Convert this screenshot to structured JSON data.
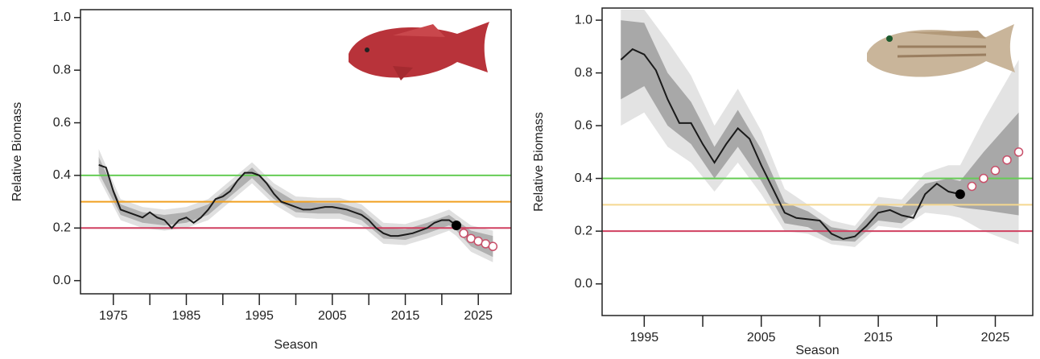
{
  "chart_data": [
    {
      "type": "line",
      "xlabel": "Season",
      "ylabel": "Relative Biomass",
      "xlim": [
        1970.5,
        2029.5
      ],
      "ylim": [
        -0.05,
        1.03
      ],
      "xticks": [
        1975,
        1985,
        1995,
        2005,
        2015,
        2025
      ],
      "x_minor_ticks": [
        1980,
        1990,
        2000,
        2010,
        2020
      ],
      "yticks": [
        {
          "value": 0,
          "label": "0.0"
        },
        {
          "value": 0.2,
          "label": "0.2"
        },
        {
          "value": 0.4,
          "label": "0.4"
        },
        {
          "value": 0.6,
          "label": "0.6"
        },
        {
          "value": 0.8,
          "label": "0.8"
        },
        {
          "value": 1,
          "label": "1.0"
        }
      ],
      "x": [
        1973,
        1974,
        1975,
        1976,
        1977,
        1978,
        1979,
        1980,
        1981,
        1982,
        1983,
        1984,
        1985,
        1986,
        1987,
        1988,
        1989,
        1990,
        1991,
        1992,
        1993,
        1994,
        1995,
        1996,
        1997,
        1998,
        1999,
        2000,
        2001,
        2002,
        2003,
        2004,
        2005,
        2006,
        2007,
        2008,
        2009,
        2010,
        2011,
        2012,
        2013,
        2014,
        2015,
        2016,
        2017,
        2018,
        2019,
        2020,
        2021,
        2022
      ],
      "values": [
        0.44,
        0.43,
        0.34,
        0.27,
        0.26,
        0.25,
        0.24,
        0.26,
        0.24,
        0.23,
        0.2,
        0.23,
        0.24,
        0.22,
        0.24,
        0.27,
        0.31,
        0.32,
        0.34,
        0.38,
        0.41,
        0.41,
        0.4,
        0.37,
        0.33,
        0.3,
        0.29,
        0.28,
        0.27,
        0.27,
        0.275,
        0.28,
        0.28,
        0.275,
        0.27,
        0.26,
        0.25,
        0.23,
        0.2,
        0.18,
        0.17,
        0.17,
        0.175,
        0.18,
        0.19,
        0.2,
        0.22,
        0.23,
        0.23,
        0.21
      ],
      "color": "#1a1a1a",
      "current": {
        "x": 2022,
        "value": 0.21,
        "color": "#000000"
      },
      "projection": {
        "x": [
          2023,
          2024,
          2025,
          2026,
          2027
        ],
        "values": [
          0.18,
          0.16,
          0.15,
          0.14,
          0.13
        ],
        "color": "#c8506a"
      },
      "bands": [
        {
          "color": "#e0e0e0",
          "x": [
            1973,
            1976,
            1979,
            1982,
            1985,
            1988,
            1991,
            1994,
            1997,
            2000,
            2003,
            2006,
            2009,
            2012,
            2015,
            2018,
            2021,
            2022,
            2024,
            2027
          ],
          "lower": [
            0.39,
            0.23,
            0.2,
            0.19,
            0.2,
            0.23,
            0.3,
            0.37,
            0.29,
            0.24,
            0.235,
            0.235,
            0.21,
            0.14,
            0.135,
            0.16,
            0.19,
            0.17,
            0.11,
            0.07
          ],
          "upper": [
            0.5,
            0.31,
            0.28,
            0.27,
            0.28,
            0.31,
            0.38,
            0.45,
            0.37,
            0.32,
            0.315,
            0.315,
            0.29,
            0.22,
            0.215,
            0.24,
            0.27,
            0.25,
            0.21,
            0.19
          ]
        },
        {
          "color": "#b0b0b0",
          "x": [
            1973,
            1976,
            1979,
            1982,
            1985,
            1988,
            1991,
            1994,
            1997,
            2000,
            2003,
            2006,
            2009,
            2012,
            2015,
            2018,
            2021,
            2022,
            2024,
            2027
          ],
          "lower": [
            0.41,
            0.25,
            0.22,
            0.21,
            0.22,
            0.25,
            0.32,
            0.39,
            0.31,
            0.26,
            0.255,
            0.255,
            0.23,
            0.16,
            0.155,
            0.18,
            0.21,
            0.19,
            0.13,
            0.09
          ],
          "upper": [
            0.47,
            0.29,
            0.26,
            0.25,
            0.26,
            0.29,
            0.36,
            0.43,
            0.35,
            0.3,
            0.295,
            0.295,
            0.27,
            0.2,
            0.195,
            0.22,
            0.25,
            0.23,
            0.19,
            0.17
          ]
        }
      ],
      "reference_lines": [
        {
          "value": 0.4,
          "color": "#66cc55"
        },
        {
          "value": 0.3,
          "color": "#f0a020"
        },
        {
          "value": 0.2,
          "color": "#d04060"
        }
      ]
    },
    {
      "type": "line",
      "xlabel": "Season",
      "ylabel": "Relative Biomass",
      "xlim": [
        1991.4,
        2028.2
      ],
      "ylim": [
        -0.12,
        1.046
      ],
      "xticks": [
        1995,
        2005,
        2015,
        2025
      ],
      "x_minor_ticks": [
        2000,
        2010,
        2020
      ],
      "yticks": [
        {
          "value": 0,
          "label": "0.0"
        },
        {
          "value": 0.2,
          "label": "0.2"
        },
        {
          "value": 0.4,
          "label": "0.4"
        },
        {
          "value": 0.6,
          "label": "0.6"
        },
        {
          "value": 0.8,
          "label": "0.8"
        },
        {
          "value": 1,
          "label": "1.0"
        }
      ],
      "x": [
        1993,
        1994,
        1995,
        1996,
        1997,
        1998,
        1999,
        2000,
        2001,
        2002,
        2003,
        2004,
        2005,
        2006,
        2007,
        2008,
        2009,
        2010,
        2011,
        2012,
        2013,
        2014,
        2015,
        2016,
        2017,
        2018,
        2019,
        2020,
        2021,
        2022
      ],
      "values": [
        0.85,
        0.89,
        0.87,
        0.81,
        0.7,
        0.61,
        0.61,
        0.53,
        0.46,
        0.53,
        0.59,
        0.55,
        0.45,
        0.36,
        0.27,
        0.25,
        0.245,
        0.24,
        0.19,
        0.17,
        0.18,
        0.22,
        0.27,
        0.28,
        0.26,
        0.25,
        0.34,
        0.38,
        0.35,
        0.34
      ],
      "color": "#1a1a1a",
      "current": {
        "x": 2022,
        "value": 0.34,
        "color": "#000000"
      },
      "projection": {
        "x": [
          2023,
          2024,
          2025,
          2026,
          2027
        ],
        "values": [
          0.37,
          0.4,
          0.43,
          0.47,
          0.5
        ],
        "color": "#c8506a"
      },
      "bands": [
        {
          "color": "#e3e3e3",
          "x": [
            1993,
            1995,
            1997,
            1999,
            2001,
            2003,
            2005,
            2007,
            2009,
            2011,
            2013,
            2015,
            2017,
            2019,
            2021,
            2022,
            2024,
            2027
          ],
          "lower": [
            0.6,
            0.65,
            0.52,
            0.46,
            0.35,
            0.46,
            0.34,
            0.2,
            0.19,
            0.15,
            0.14,
            0.22,
            0.21,
            0.27,
            0.26,
            0.25,
            0.2,
            0.15
          ],
          "upper": [
            1.04,
            1.04,
            0.92,
            0.79,
            0.6,
            0.74,
            0.58,
            0.36,
            0.3,
            0.24,
            0.22,
            0.33,
            0.32,
            0.42,
            0.45,
            0.45,
            0.62,
            0.85
          ]
        },
        {
          "color": "#a8a8a8",
          "x": [
            1993,
            1995,
            1997,
            1999,
            2001,
            2003,
            2005,
            2007,
            2009,
            2011,
            2013,
            2015,
            2017,
            2019,
            2021,
            2022,
            2024,
            2027
          ],
          "lower": [
            0.7,
            0.75,
            0.6,
            0.53,
            0.4,
            0.52,
            0.39,
            0.23,
            0.215,
            0.165,
            0.16,
            0.24,
            0.23,
            0.3,
            0.3,
            0.29,
            0.28,
            0.26
          ],
          "upper": [
            1.0,
            0.99,
            0.8,
            0.69,
            0.52,
            0.66,
            0.51,
            0.31,
            0.275,
            0.215,
            0.2,
            0.3,
            0.29,
            0.38,
            0.4,
            0.39,
            0.5,
            0.65
          ]
        }
      ],
      "reference_lines": [
        {
          "value": 0.4,
          "color": "#66cc55"
        },
        {
          "value": 0.3,
          "color": "#f5d890"
        },
        {
          "value": 0.2,
          "color": "#d04060"
        }
      ]
    }
  ]
}
